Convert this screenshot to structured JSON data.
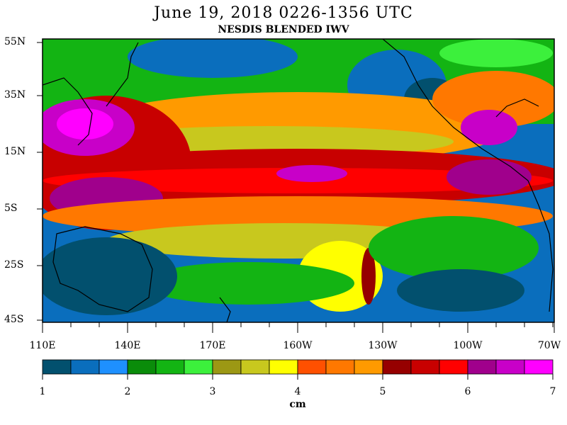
{
  "title": "June 19, 2018  0226-1356 UTC",
  "subtitle": "NESDIS BLENDED IWV",
  "lat_labels": [
    "55N",
    "35N",
    "15N",
    "5S",
    "25S",
    "45S"
  ],
  "lon_labels": [
    "110E",
    "140E",
    "170E",
    "160W",
    "130W",
    "100W",
    "70W"
  ],
  "colorbar": {
    "ticks": [
      "1",
      "2",
      "3",
      "4",
      "5",
      "6",
      "7"
    ],
    "unit": "cm",
    "colors": [
      "#02506e",
      "#0a6ebd",
      "#1e90ff",
      "#0a8c0a",
      "#13b413",
      "#3cf03c",
      "#9c9814",
      "#c8c81e",
      "#ffff00",
      "#ff5000",
      "#ff7800",
      "#ff9a00",
      "#960000",
      "#c80000",
      "#ff0000",
      "#a0008c",
      "#c800c8",
      "#ff00ff"
    ]
  }
}
